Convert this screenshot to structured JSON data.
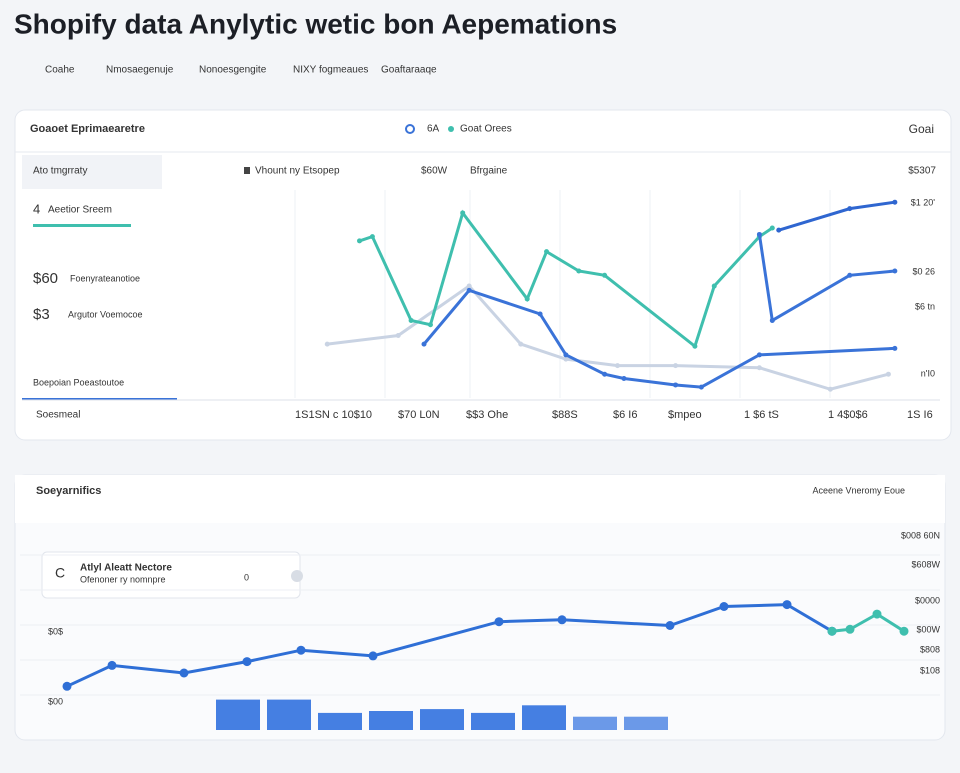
{
  "header": {
    "title": "Shopify data Anylytic wetic bon Aepemations"
  },
  "nav": [
    "Coahe",
    "Nmosaegenuje",
    "Nonoesgengite",
    "NIXY fogmeaues",
    "Goaftaraaqe"
  ],
  "panel1": {
    "title": "Goaoet Eprimaearetre",
    "legend": [
      "6A",
      "Goat Orees"
    ],
    "corner": "Goai",
    "row_header": [
      "Ato tmgrraty",
      "Vhount ny Etsopep",
      "$60W",
      "Bfrgaine",
      "$5307"
    ],
    "sidebar": [
      "4",
      "Aeetior Sreem",
      "$60",
      "Foenyrateanotioe",
      "$3",
      "Argutor Voemocoe",
      "Boepoian Poeastoutoe"
    ],
    "x_axis_title": "Soesmeal",
    "x_labels": [
      "1S1SN c 10$10",
      "$70 L0N",
      "$$3 Ohe",
      "$88S",
      "$6 I6",
      "$mpeo",
      "1 $6 tS",
      "1 4$0$6",
      "1S I6"
    ],
    "y_labels": [
      "$1 20'",
      "$0 26",
      "$6 tn",
      "n'I0"
    ],
    "chart": {
      "xlim": [
        0,
        100
      ],
      "ylim": [
        0,
        100
      ],
      "series": [
        {
          "color": "#c9d3e3",
          "x": [
            5,
            16,
            27,
            35,
            42,
            50,
            59,
            72,
            83,
            92
          ],
          "values": [
            26,
            30,
            53,
            26,
            19,
            16,
            16,
            15,
            5,
            12
          ]
        },
        {
          "color": "#3fbfae",
          "x": [
            10,
            12,
            18,
            21,
            26,
            36,
            39,
            44,
            48,
            62,
            65,
            72,
            74
          ],
          "values": [
            74,
            76,
            37,
            35,
            87,
            47,
            69,
            60,
            58,
            25,
            53,
            76,
            80
          ]
        },
        {
          "color": "#3a73d8",
          "x": [
            20,
            27,
            38,
            42,
            48,
            51,
            59,
            63,
            72,
            93
          ],
          "values": [
            26,
            51,
            40,
            21,
            12,
            10,
            7,
            6,
            21,
            24
          ]
        },
        {
          "color": "#3a73d8",
          "x": [
            72,
            74,
            86,
            93
          ],
          "values": [
            77,
            37,
            58,
            60
          ]
        },
        {
          "color": "#2f66d0",
          "x": [
            75,
            86,
            93
          ],
          "values": [
            79,
            89,
            92
          ]
        }
      ]
    }
  },
  "panel2": {
    "title": "Soeyarnifics",
    "action": "Aceene Vneromy Eoue",
    "tooltip": {
      "icon": "C",
      "title": "Atlyl Aleatt Nectore",
      "subtitle": "Ofenoner ry nomnpre",
      "badge": "0"
    },
    "y_labels": [
      "$008 60N",
      "$608W",
      "$0000",
      "$00W",
      "$808",
      "$108"
    ],
    "left_labels": [
      "$0$",
      "$00"
    ],
    "chart": {
      "xlim": [
        0,
        100
      ],
      "ylim": [
        0,
        100
      ],
      "series": [
        {
          "color": "#2f6fd6",
          "x": [
            3,
            8,
            16,
            23,
            29,
            37,
            51,
            58,
            70,
            76,
            83,
            88
          ],
          "values": [
            23,
            34,
            30,
            36,
            42,
            39,
            57,
            58,
            55,
            65,
            66,
            52
          ]
        },
        {
          "color": "#3fbfae",
          "x": [
            88,
            90,
            93,
            96
          ],
          "values": [
            52,
            53,
            61,
            52
          ]
        }
      ],
      "bars": {
        "color": "#3b78e0",
        "values": [
          16,
          16,
          9,
          10,
          11,
          9,
          13,
          7,
          7
        ]
      }
    }
  }
}
